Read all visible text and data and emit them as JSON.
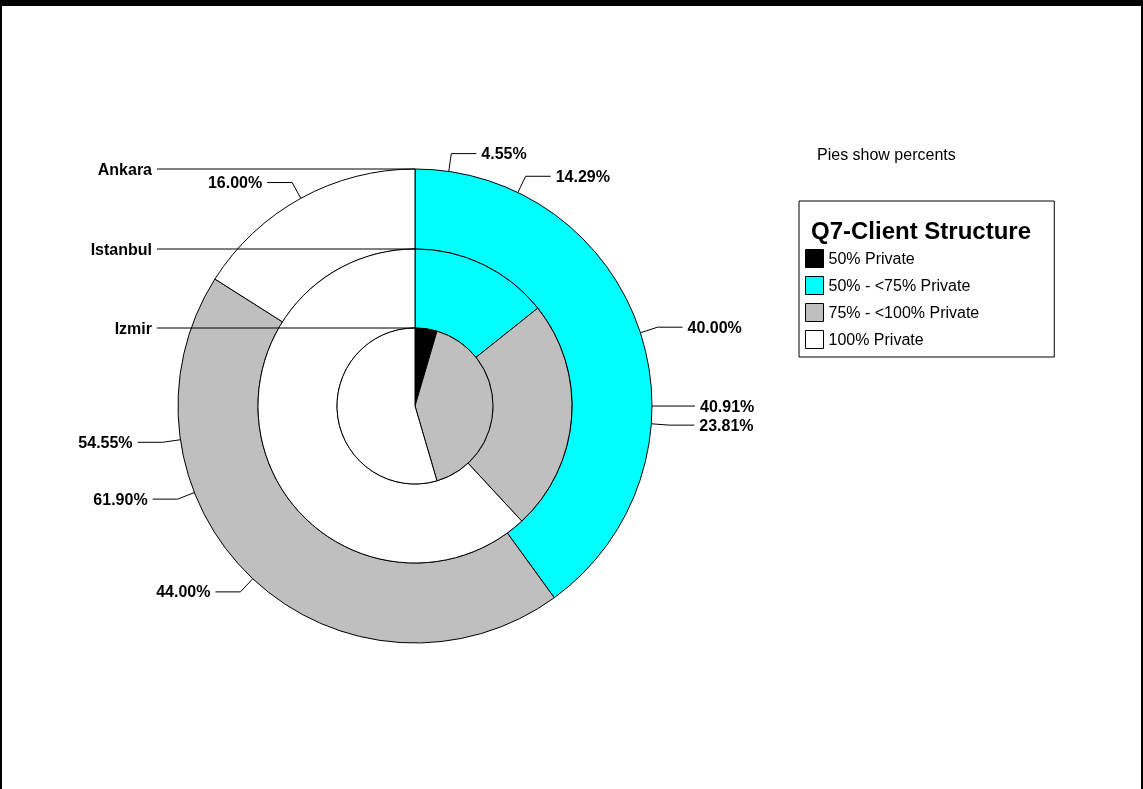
{
  "chart_data": {
    "type": "donut",
    "categories": [
      "50% Private",
      "50% - <75% Private",
      "75% - <100% Private",
      "100% Private"
    ],
    "colors": [
      "#000000",
      "#00ffff",
      "#bfbfbf",
      "#ffffff"
    ],
    "series": [
      {
        "name": "Ankara",
        "values": [
          null,
          40.0,
          44.0,
          16.0
        ],
        "value_labels": [
          null,
          "40.00%",
          "44.00%",
          "16.00%"
        ]
      },
      {
        "name": "Istanbul",
        "values": [
          null,
          14.29,
          23.81,
          61.9
        ],
        "value_labels": [
          null,
          "14.29%",
          "23.81%",
          "61.90%"
        ]
      },
      {
        "name": "Izmir",
        "values": [
          4.55,
          null,
          40.91,
          54.55
        ],
        "value_labels": [
          "4.55%",
          null,
          "40.91%",
          "54.55%"
        ]
      }
    ],
    "legend": "top right",
    "legend_title": "Q7-Client Structure",
    "annotations": [
      "Pies show percents"
    ]
  }
}
